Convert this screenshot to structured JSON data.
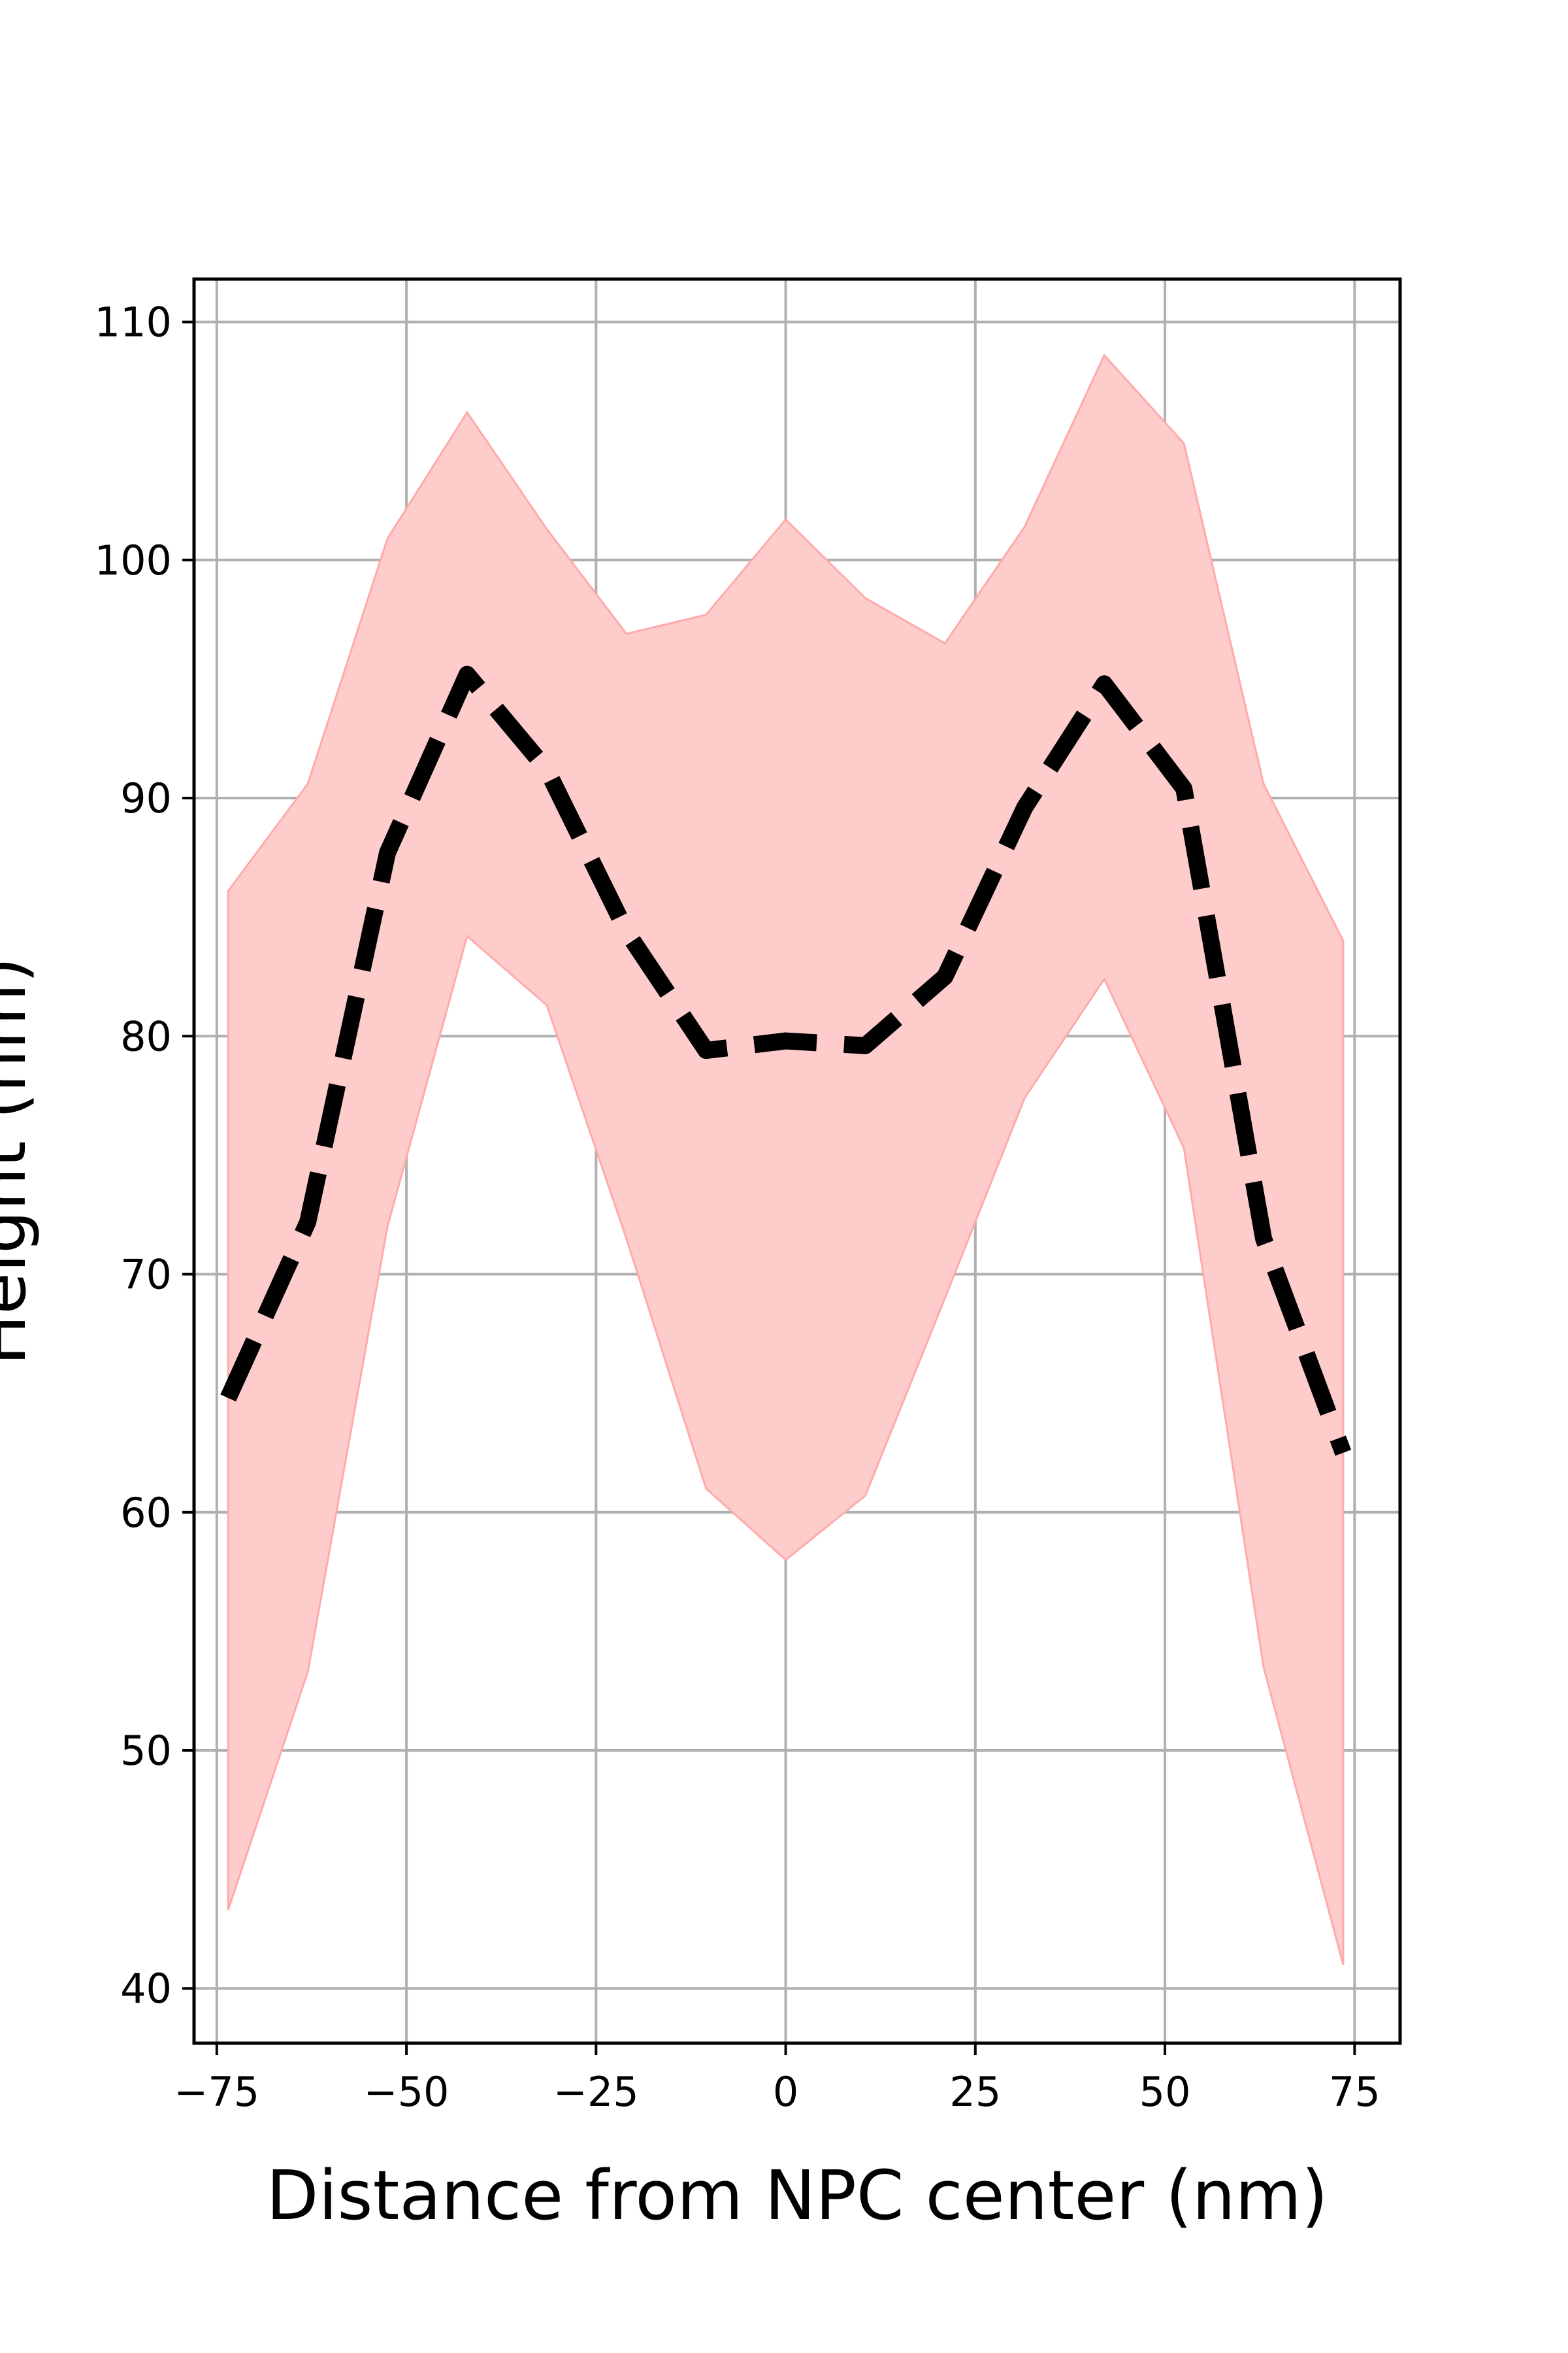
{
  "chart_data": {
    "type": "line",
    "title": "",
    "xlabel": "Distance from NPC center (nm)",
    "ylabel": "Height (nm)",
    "xlim": [
      -78,
      81
    ],
    "ylim": [
      37.7,
      111.8
    ],
    "x_ticks": [
      -75,
      -50,
      -25,
      0,
      25,
      50,
      75
    ],
    "x_tick_labels": [
      "−75",
      "−50",
      "−25",
      "0",
      "25",
      "50",
      "75"
    ],
    "y_ticks": [
      40,
      50,
      60,
      70,
      80,
      90,
      100,
      110
    ],
    "y_tick_labels": [
      "40",
      "50",
      "60",
      "70",
      "80",
      "90",
      "100",
      "110"
    ],
    "grid": true,
    "series": [
      {
        "style": "dashed",
        "color": "#000000",
        "x": [
          -73.5,
          -63,
          -52.5,
          -42,
          -31.5,
          -21,
          -10.5,
          0,
          10.5,
          21,
          31.5,
          42,
          52.5,
          63,
          73.5
        ],
        "values": [
          64.8,
          72.2,
          87.7,
          95.2,
          91.2,
          84.4,
          79.4,
          79.8,
          79.6,
          82.5,
          89.6,
          94.8,
          90.4,
          71.5,
          62.5
        ]
      }
    ],
    "band": {
      "color": "#ffcccc",
      "edge_color": "#ffaaaa",
      "x": [
        -73.5,
        -63,
        -52.5,
        -42,
        -31.5,
        -21,
        -10.5,
        0,
        10.5,
        21,
        31.5,
        42,
        52.5,
        63,
        73.5
      ],
      "upper": [
        86.1,
        90.6,
        100.9,
        106.2,
        101.3,
        96.9,
        97.7,
        101.7,
        98.4,
        96.5,
        101.4,
        108.6,
        104.9,
        90.6,
        84.0
      ],
      "lower": [
        43.3,
        53.3,
        72.0,
        84.2,
        81.3,
        71.5,
        61.0,
        58.0,
        60.7,
        69.0,
        77.4,
        82.4,
        75.3,
        53.5,
        41.0
      ]
    }
  }
}
